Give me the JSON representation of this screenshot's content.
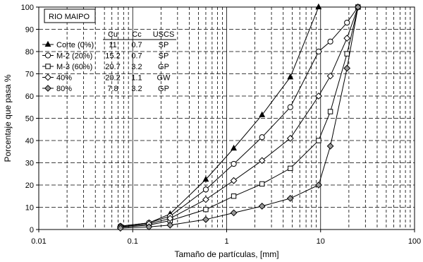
{
  "chart_data": {
    "type": "line",
    "x_scale": "log",
    "xlim": [
      0.01,
      100
    ],
    "ylim": [
      0,
      100
    ],
    "xlabel": "Tamaño de partículas, [mm]",
    "ylabel": "Porcentaje que pasa %",
    "x_ticks": [
      "0.01",
      "0.1",
      "1",
      "10",
      "100"
    ],
    "y_ticks": [
      "0",
      "10",
      "20",
      "30",
      "40",
      "50",
      "60",
      "70",
      "80",
      "90",
      "100"
    ],
    "grid": true,
    "site_label": "RIO MAIPO",
    "table": {
      "headers": [
        "Cu",
        "Cc",
        "USCS"
      ],
      "rows": [
        [
          "11",
          "0.7",
          "SP"
        ],
        [
          "15.2",
          "0.7",
          "SP"
        ],
        [
          "20.7",
          "3.2",
          "GP"
        ],
        [
          "20.2",
          "1.1",
          "GW"
        ],
        [
          "7.8",
          "3.2",
          "GP"
        ]
      ]
    },
    "series": [
      {
        "name": "Corte (0%)",
        "marker": "triangle-filled",
        "x": [
          0.074,
          0.149,
          0.25,
          0.6,
          1.19,
          2.38,
          4.76,
          9.52,
          25
        ],
        "y": [
          1.5,
          3,
          7,
          22.5,
          36.5,
          51.5,
          68.5,
          100,
          100
        ]
      },
      {
        "name": "M-2 (20%)",
        "marker": "circle-open",
        "x": [
          0.074,
          0.149,
          0.25,
          0.6,
          1.19,
          2.38,
          4.76,
          9.52,
          12.7,
          19.1,
          25
        ],
        "y": [
          1.5,
          3,
          6,
          18,
          29.5,
          41.5,
          55,
          80,
          84.5,
          93,
          100
        ]
      },
      {
        "name": "M-3 (60%)",
        "marker": "square-open",
        "x": [
          0.074,
          0.149,
          0.25,
          0.6,
          1.19,
          2.38,
          4.76,
          9.52,
          12.7,
          19.1,
          25
        ],
        "y": [
          1,
          2,
          4,
          9,
          15,
          20.5,
          27.5,
          40,
          53,
          79,
          100
        ]
      },
      {
        "name": "40%",
        "marker": "diamond-open",
        "x": [
          0.074,
          0.149,
          0.25,
          0.6,
          1.19,
          2.38,
          4.76,
          9.52,
          12.7,
          19.1,
          25
        ],
        "y": [
          1.2,
          2.5,
          5,
          13.5,
          22,
          31,
          41,
          60,
          69,
          86,
          100
        ]
      },
      {
        "name": "80%",
        "marker": "diamond-gray",
        "x": [
          0.074,
          0.149,
          0.25,
          0.6,
          1.19,
          2.38,
          4.76,
          9.52,
          12.7,
          19.1,
          25
        ],
        "y": [
          0.6,
          1.2,
          2,
          4.5,
          7.5,
          10.5,
          14,
          20,
          37.5,
          72.5,
          100
        ]
      }
    ]
  }
}
